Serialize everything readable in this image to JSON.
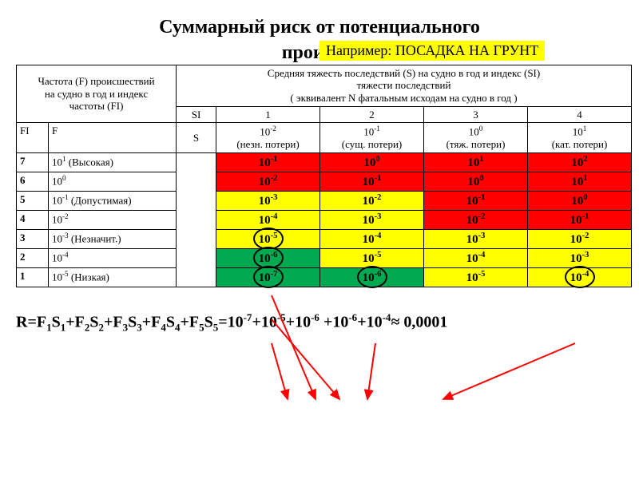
{
  "title": "Суммарный риск от потенциального",
  "subtitle_partial": "происше",
  "example_label": "Например: ПОСАДКА  НА  ГРУНТ",
  "header_left_line1": "Частота (F) происшествий",
  "header_left_line2": "на судно в год и индекс",
  "header_left_line3": "частоты  (FI)",
  "header_right_line1": "Средняя тяжесть последствий (S) на судно в год и индекс (SI)",
  "header_right_line2": "тяжести последствий",
  "header_right_line3": "( эквивалент N фатальным исходам на судно в год )",
  "col_fi": "FI",
  "col_f": "F",
  "col_si": "SI",
  "col_s": "S",
  "severity_cols": [
    {
      "idx": "1",
      "val_html": "10<sup>-2</sup>",
      "label": "(незн. потери)"
    },
    {
      "idx": "2",
      "val_html": "10<sup>-1</sup>",
      "label": "(сущ. потери)"
    },
    {
      "idx": "3",
      "val_html": "10<sup>0</sup>",
      "label": "(тяж. потери)"
    },
    {
      "idx": "4",
      "val_html": "10<sup>1</sup>",
      "label": "(кат. потери)"
    }
  ],
  "rows": [
    {
      "fi": "7",
      "f_html": "10<sup>1</sup>  (Высокая)",
      "cells": [
        {
          "t": "10<sup>-1</sup>",
          "c": "red"
        },
        {
          "t": "10<sup>0</sup>",
          "c": "red"
        },
        {
          "t": "10<sup>1</sup>",
          "c": "red"
        },
        {
          "t": "10<sup>2</sup>",
          "c": "red"
        }
      ]
    },
    {
      "fi": "6",
      "f_html": "10<sup>0</sup>",
      "cells": [
        {
          "t": "10<sup>-2</sup>",
          "c": "red"
        },
        {
          "t": "10<sup>-1</sup>",
          "c": "red"
        },
        {
          "t": "10<sup>0</sup>",
          "c": "red"
        },
        {
          "t": "10<sup>1</sup>",
          "c": "red"
        }
      ]
    },
    {
      "fi": "5",
      "f_html": "10<sup>-1</sup> (Допустимая)",
      "cells": [
        {
          "t": "10<sup>-3</sup>",
          "c": "yellow"
        },
        {
          "t": "10<sup>-2</sup>",
          "c": "yellow"
        },
        {
          "t": "10<sup>-1</sup>",
          "c": "red"
        },
        {
          "t": "10<sup>0</sup>",
          "c": "red"
        }
      ]
    },
    {
      "fi": "4",
      "f_html": "10<sup>-2</sup>",
      "cells": [
        {
          "t": "10<sup>-4</sup>",
          "c": "yellow"
        },
        {
          "t": "10<sup>-3</sup>",
          "c": "yellow"
        },
        {
          "t": "10<sup>-2</sup>",
          "c": "red"
        },
        {
          "t": "10<sup>-1</sup>",
          "c": "red"
        }
      ]
    },
    {
      "fi": "3",
      "f_html": "10<sup>-3</sup> (Незначит.)",
      "cells": [
        {
          "t": "10<sup>-5</sup>",
          "c": "yellow",
          "circle": true
        },
        {
          "t": "10<sup>-4</sup>",
          "c": "yellow"
        },
        {
          "t": "10<sup>-3</sup>",
          "c": "yellow"
        },
        {
          "t": "10<sup>-2</sup>",
          "c": "yellow"
        }
      ]
    },
    {
      "fi": "2",
      "f_html": "10<sup>-4</sup>",
      "cells": [
        {
          "t": "10<sup>-6</sup>",
          "c": "green",
          "circle": true
        },
        {
          "t": "10<sup>-5</sup>",
          "c": "yellow"
        },
        {
          "t": "10<sup>-4</sup>",
          "c": "yellow"
        },
        {
          "t": "10<sup>-3</sup>",
          "c": "yellow"
        }
      ]
    },
    {
      "fi": "1",
      "f_html": "10<sup>-5</sup> (Низкая)",
      "cells": [
        {
          "t": "10<sup>-7</sup>",
          "c": "green",
          "circle": true
        },
        {
          "t": "10<sup>-6</sup>",
          "c": "green",
          "circle": true
        },
        {
          "t": "10<sup>-5</sup>",
          "c": "yellow"
        },
        {
          "t": "10<sup>-4</sup>",
          "c": "yellow",
          "circle": true
        }
      ]
    }
  ],
  "formula_html": "R=F<sub>1</sub>S<sub>1</sub>+F<sub>2</sub>S<sub>2</sub>+F<sub>3</sub>S<sub>3</sub>+F<sub>4</sub>S<sub>4</sub>+F<sub>5</sub>S<sub>5</sub>=10<sup>-7</sup>+10<sup>-5</sup>+10<sup>-6</sup> +10<sup>-6</sup>+10<sup>-4</sup>≈ 0,0001",
  "colors": {
    "red": "#ff0000",
    "yellow": "#ffff00",
    "green": "#00a84f",
    "arrow": "#ff0000"
  }
}
